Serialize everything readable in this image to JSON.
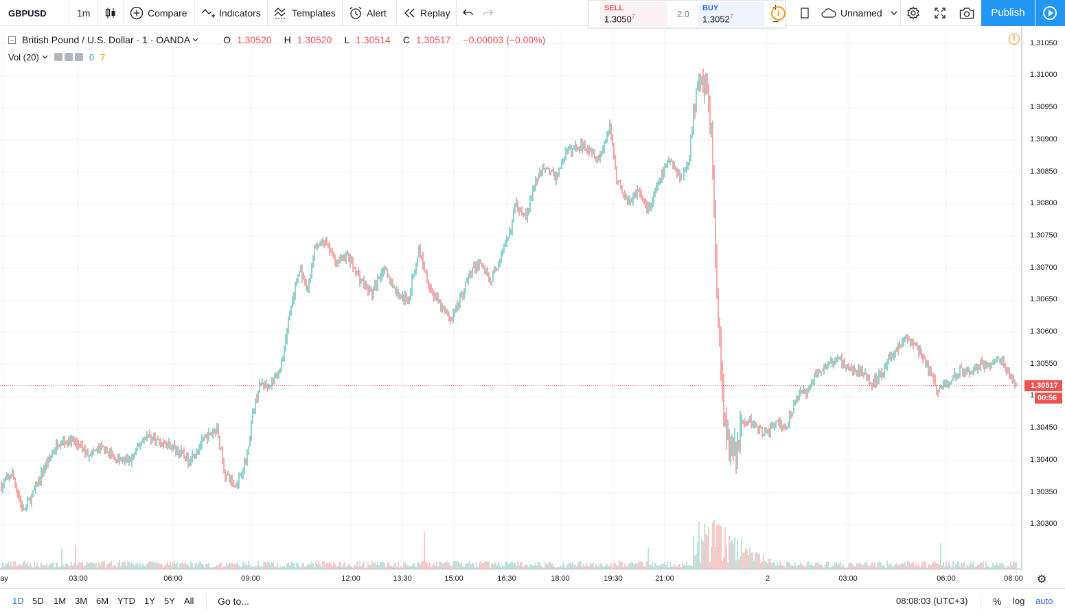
{
  "toolbar": {
    "symbol": "GBPUSD",
    "interval": "1m",
    "compare_label": "Compare",
    "indicators_label": "Indicators",
    "templates_label": "Templates",
    "alert_label": "Alert",
    "replay_label": "Replay",
    "undo_icon": "undo-icon",
    "redo_icon": "redo-icon",
    "layout_name": "Unnamed",
    "publish_label": "Publish"
  },
  "trade": {
    "sell_label": "SELL",
    "sell_price": "1.3050",
    "sell_pip": "7",
    "spread": "2.0",
    "buy_label": "BUY",
    "buy_price": "1.3052",
    "buy_pip": "7",
    "plus": "+",
    "minus": "–"
  },
  "legend": {
    "title": "British Pound / U.S. Dollar · 1 · OANDA",
    "o_label": "O",
    "o_value": "1.30520",
    "h_label": "H",
    "h_value": "1.30520",
    "l_label": "L",
    "l_value": "1.30514",
    "c_label": "C",
    "c_value": "1.30517",
    "change": "−0.00003 (−0.00%)",
    "vol_label": "Vol (20)",
    "vol_value1": "0",
    "vol_value2": "7"
  },
  "price_scale": {
    "ticks": [
      "1.31050",
      "1.31000",
      "1.30950",
      "1.30900",
      "1.30850",
      "1.30800",
      "1.30750",
      "1.30700",
      "1.30650",
      "1.30600",
      "1.30550",
      "1",
      "1.30450",
      "1.30400",
      "1.30350",
      "1.30300"
    ],
    "last_price": "1.30517",
    "countdown": "00:56"
  },
  "time_axis": {
    "ticks": [
      "ay",
      "03:00",
      "06:00",
      "09:00",
      "12:00",
      "13:30",
      "15:00",
      "16:30",
      "18:00",
      "19:30",
      "21:00",
      "2",
      "03:00",
      "06:00",
      "08:00"
    ]
  },
  "bottom": {
    "ranges": [
      "1D",
      "5D",
      "1M",
      "3M",
      "6M",
      "YTD",
      "1Y",
      "5Y",
      "All"
    ],
    "active_range": "1D",
    "goto_label": "Go to...",
    "clock": "08:08:03 (UTC+3)",
    "pct_label": "%",
    "log_label": "log",
    "auto_label": "auto"
  },
  "colors": {
    "up": "#26a69a",
    "down": "#ef5350",
    "accent": "#2196f3",
    "last_price_line": "#ef5350"
  },
  "chart_data": {
    "type": "candlestick",
    "symbol": "GBPUSD",
    "interval": "1",
    "source": "OANDA",
    "ylim": [
      1.30265,
      1.3107
    ],
    "x_ticks": [
      "ay",
      "03:00",
      "06:00",
      "09:00",
      "12:00",
      "13:30",
      "15:00",
      "16:30",
      "18:00",
      "19:30",
      "21:00",
      "2",
      "03:00",
      "06:00",
      "08:00"
    ],
    "close_path": [
      [
        0,
        1.3036
      ],
      [
        0.3,
        1.3038
      ],
      [
        0.6,
        1.3032
      ],
      [
        0.9,
        1.3035
      ],
      [
        1.2,
        1.3039
      ],
      [
        1.6,
        1.3043
      ],
      [
        2.0,
        1.3043
      ],
      [
        2.4,
        1.3041
      ],
      [
        2.8,
        1.3042
      ],
      [
        3.2,
        1.304
      ],
      [
        3.6,
        1.304
      ],
      [
        4.0,
        1.3044
      ],
      [
        4.4,
        1.3043
      ],
      [
        4.8,
        1.3042
      ],
      [
        5.2,
        1.304
      ],
      [
        5.6,
        1.3043
      ],
      [
        6.0,
        1.3045
      ],
      [
        6.2,
        1.3038
      ],
      [
        6.5,
        1.3036
      ],
      [
        6.8,
        1.304
      ],
      [
        7.0,
        1.3048
      ],
      [
        7.2,
        1.3052
      ],
      [
        7.5,
        1.3052
      ],
      [
        7.8,
        1.3055
      ],
      [
        8.0,
        1.3063
      ],
      [
        8.3,
        1.307
      ],
      [
        8.5,
        1.3066
      ],
      [
        8.7,
        1.3073
      ],
      [
        9.0,
        1.3074
      ],
      [
        9.3,
        1.3071
      ],
      [
        9.6,
        1.3072
      ],
      [
        10.0,
        1.3068
      ],
      [
        10.3,
        1.3066
      ],
      [
        10.6,
        1.307
      ],
      [
        11.0,
        1.3066
      ],
      [
        11.3,
        1.3065
      ],
      [
        11.6,
        1.3073
      ],
      [
        11.9,
        1.3067
      ],
      [
        12.2,
        1.3064
      ],
      [
        12.5,
        1.3062
      ],
      [
        12.8,
        1.3066
      ],
      [
        13.0,
        1.3069
      ],
      [
        13.3,
        1.3071
      ],
      [
        13.6,
        1.3068
      ],
      [
        13.9,
        1.3072
      ],
      [
        14.1,
        1.3075
      ],
      [
        14.3,
        1.308
      ],
      [
        14.6,
        1.3078
      ],
      [
        14.8,
        1.3083
      ],
      [
        15.1,
        1.3086
      ],
      [
        15.4,
        1.3084
      ],
      [
        15.7,
        1.3088
      ],
      [
        16.0,
        1.3089
      ],
      [
        16.3,
        1.3089
      ],
      [
        16.6,
        1.3087
      ],
      [
        16.9,
        1.3092
      ],
      [
        17.1,
        1.3084
      ],
      [
        17.4,
        1.308
      ],
      [
        17.7,
        1.3082
      ],
      [
        18.0,
        1.3079
      ],
      [
        18.3,
        1.3084
      ],
      [
        18.6,
        1.3087
      ],
      [
        18.9,
        1.3084
      ],
      [
        19.1,
        1.3087
      ],
      [
        19.25,
        1.3095
      ],
      [
        19.4,
        1.31
      ],
      [
        19.6,
        1.3098
      ],
      [
        19.75,
        1.309
      ],
      [
        19.85,
        1.307
      ],
      [
        19.95,
        1.306
      ],
      [
        20.05,
        1.3048
      ],
      [
        20.2,
        1.3043
      ],
      [
        20.4,
        1.3041
      ],
      [
        20.6,
        1.3046
      ],
      [
        20.9,
        1.3046
      ],
      [
        21.2,
        1.3044
      ],
      [
        21.5,
        1.3046
      ],
      [
        21.8,
        1.3045
      ],
      [
        22.1,
        1.305
      ],
      [
        22.4,
        1.3051
      ],
      [
        22.7,
        1.3054
      ],
      [
        23.0,
        1.3055
      ],
      [
        23.3,
        1.3056
      ],
      [
        23.6,
        1.3054
      ],
      [
        23.9,
        1.3054
      ],
      [
        24.2,
        1.3052
      ],
      [
        24.5,
        1.3054
      ],
      [
        24.8,
        1.3057
      ],
      [
        25.1,
        1.3059
      ],
      [
        25.4,
        1.3058
      ],
      [
        25.7,
        1.3055
      ],
      [
        26.0,
        1.3051
      ],
      [
        26.3,
        1.3052
      ],
      [
        26.6,
        1.3054
      ],
      [
        26.9,
        1.3054
      ],
      [
        27.2,
        1.3055
      ],
      [
        27.5,
        1.3055
      ],
      [
        27.8,
        1.3056
      ],
      [
        28.0,
        1.3053
      ],
      [
        28.2,
        1.30517
      ]
    ]
  }
}
